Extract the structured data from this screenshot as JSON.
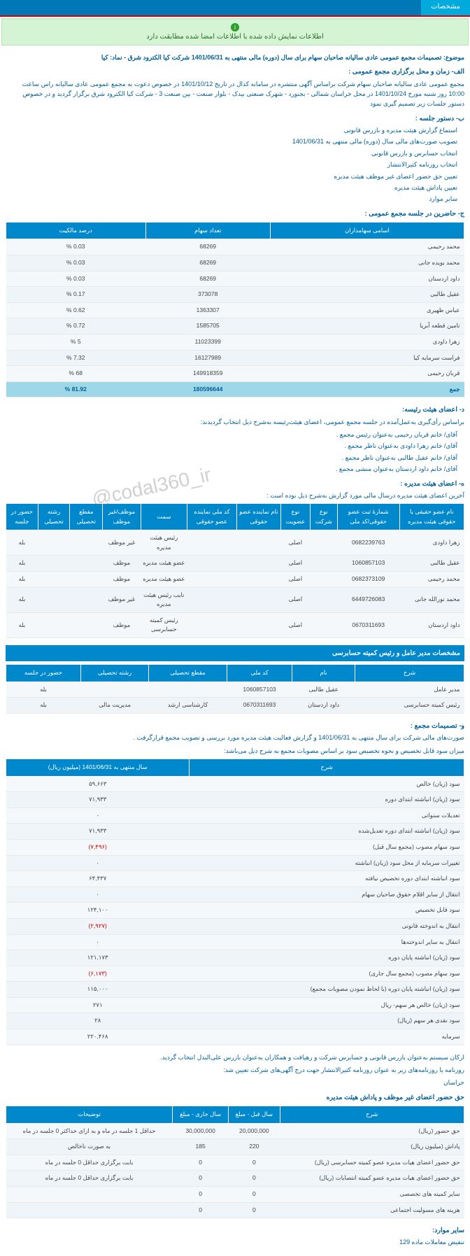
{
  "topbar_tab": "مشخصات",
  "alert_text": "اطلاعات نمایش داده شده با اطلاعات امضا شده مطابقت دارد",
  "subject_label": "موضوع:",
  "subject_text": "تصمیمات مجمع عمومی عادی سالیانه صاحبان سهام برای سال (دوره) مالی منتهی به 1401/06/31 شرکت کیا الکترود شرق - نماد: کیا",
  "intro_para": "مجمع عمومی عادی سالیانه صاحبان سهام شرکت براساس آگهی منتشره در سامانه کدال در تاریخ 1401/10/12 در خصوص دعوت به مجمع عمومی عادی سالیانه راس ساعت 10:00 روز شنبه مورخ 1401/10/24 در محل خراسان شمالی - بجنورد - شهرک صنعتی بیدک - بلوار صنعت - بین صنعت 3 - شرکت کیا الکترود شرق  برگزار گردید و در خصوص دستور جلسات زیر تصمیم گیری نمود",
  "section_a_title": "الف- زمان و محل برگزاری مجمع عمومی :",
  "section_b_title": "ب- دستور جلسه :",
  "agenda": [
    "استماع گزارش هیئت مدیره و بازرس قانونی",
    "تصویب صورت‌های مالی سال (دوره) مالی منتهی به 1401/06/31",
    "انتخاب حسابرس و بازرس قانونی",
    "انتخاب روزنامه کثیرالانتشار",
    "تعیین حق حضور اعضای غیر موظف هیئت مدیره",
    "تعیین پاداش هیئت مدیره",
    "سایر موارد"
  ],
  "section_c_title": "ج- حاضرین در جلسه مجمع عمومی :",
  "shareholders_headers": [
    "اسامی سهامداران",
    "تعداد سهام",
    "درصد مالکیت"
  ],
  "shareholders": [
    {
      "name": "محمد رحیمی",
      "shares": "68269",
      "pct": "0.03 %"
    },
    {
      "name": "محمد بویده جانی",
      "shares": "68269",
      "pct": "0.03 %"
    },
    {
      "name": "داود اردستان",
      "shares": "68269",
      "pct": "0.03 %"
    },
    {
      "name": "عقیل طالبی",
      "shares": "373078",
      "pct": "0.17 %"
    },
    {
      "name": "عباس ظهیری",
      "shares": "1363307",
      "pct": "0.62 %"
    },
    {
      "name": "تامین قطعه آبریا",
      "shares": "1585705",
      "pct": "0.72 %"
    },
    {
      "name": "زهرا داودی",
      "shares": "11023399",
      "pct": "5 %"
    },
    {
      "name": "فراست سرمایه کیا",
      "shares": "16127989",
      "pct": "7.32 %"
    },
    {
      "name": "قربان رحیمی",
      "shares": "149918359",
      "pct": "68 %"
    },
    {
      "name": "جمع",
      "shares": "180596644",
      "pct": "81.92 %",
      "total": true
    }
  ],
  "section_d_title": "د- اعضای هیئت رئیسه:",
  "d_intro": "براساس رأی‌گیری به‌عمل‌آمده در جلسه مجمع عمومی، اعضای هیئت‌رئیسه به‌شرح ذیل انتخاب گردیدند:",
  "d_members": [
    "آقای/ خانم  قربان رحیمی  به‌عنوان رئیس مجمع .",
    "آقای/ خانم  زهرا داودی  به‌عنوان ناظر مجمع .",
    "آقای/ خانم  عقیل طالبی  به‌عنوان ناظر مجمع .",
    "آقای/ خانم  داود اردستان  به‌عنوان منشی مجمع ."
  ],
  "section_e_title": "ه- اعضای هیئت مدیره :",
  "e_intro": "آخرین اعضای هیئت مدیره درسال مالی مورد گزارش به‌شرح ذیل بوده است :",
  "board_headers": [
    "نام عضو حقیقی یا حقوقی هیئت مدیره",
    "شمارهٔ ثبت عضو حقوقی/کد ملی",
    "نوع شرکت",
    "نوع عضویت",
    "نام نماینده عضو حقوقی",
    "کد ملی نماینده عضو حقوقی",
    "سمت",
    "موظف/غیر موظف",
    "مقطع تحصیلی",
    "رشته تحصیلی",
    "حضور در جلسه"
  ],
  "board": [
    {
      "c": [
        "زهرا داودی",
        "0682239763",
        "",
        "اصلی",
        "",
        "",
        "رئیس هیئت مدیره",
        "غیر موظف",
        "",
        "",
        "بله"
      ]
    },
    {
      "c": [
        "عقیل طالبی",
        "1060857103",
        "",
        "اصلی",
        "",
        "",
        "عضو هیئت مدیره",
        "موظف",
        "",
        "",
        "بله"
      ]
    },
    {
      "c": [
        "محمد رحیمی",
        "0682373109",
        "",
        "اصلی",
        "",
        "",
        "عضو هیئت مدیره",
        "موظف",
        "",
        "",
        "بله"
      ]
    },
    {
      "c": [
        "محمد نورالله جانی",
        "6449726083",
        "",
        "اصلی",
        "",
        "",
        "نایب رئیس هیئت مدیره",
        "غیر موظف",
        "",
        "",
        "بله"
      ]
    },
    {
      "c": [
        "داود اردستان",
        "0670311693",
        "",
        "اصلی",
        "",
        "",
        "رئیس کمیته حسابرسی",
        "موظف",
        "",
        "",
        "بله"
      ]
    }
  ],
  "ceo_title": "مشخصات مدیر عامل و رئیس کمیته حسابرسی",
  "ceo_headers": [
    "شرح",
    "نام",
    "کد ملی",
    "مقطع تحصیلی",
    "رشته تحصیلی",
    "حضور در جلسه"
  ],
  "ceo_rows": [
    {
      "c": [
        "مدیر عامل",
        "عقیل طالبی",
        "1060857103",
        "",
        "",
        "بله"
      ]
    },
    {
      "c": [
        "رئیس کمیته حسابرسی",
        "داود اردستان",
        "0670311693",
        "کارشناسی ارشد",
        "مدیریت مالی",
        "بله"
      ]
    }
  ],
  "section_f_title": "و- تصمیمات مجمع :",
  "f_intro": "صورت‌های مالی شرکت برای سال منتهی به  1401/06/31 و گزارش فعالیت هیئت مدیره مورد بررسی و تصویب مجمع قرارگرفت .",
  "profit_intro": "میزان سود قابل تخصیص و نحوه تخصیص سود بر اساس مصوبات مجمع به شرح ذیل می‌باشد:",
  "profit_headers": [
    "شرح",
    "سال منتهی به 1401/06/31 (میلیون ريال)"
  ],
  "profit_rows": [
    {
      "t": "سود (زیان) خالص",
      "v": "۵۹,۶۶۳"
    },
    {
      "t": "سود (زیان) انباشته ابتدای دوره",
      "v": "۷۱,۹۳۳"
    },
    {
      "t": "تعدیلات سنواتی",
      "v": "۰"
    },
    {
      "t": "سود (زیان) انباشته ابتدای دوره تعدیل‌شده",
      "v": "۷۱,۹۳۳"
    },
    {
      "t": "سود سهام مصوب (مجمع سال قبل)",
      "v": "(۷,۴۹۶)",
      "neg": true
    },
    {
      "t": "تغییرات سرمایه از محل سود (زیان) انباشته",
      "v": "۰"
    },
    {
      "t": "سود انباشته ابتدای دوره تخصیص نیافته",
      "v": "۶۴,۴۳۷"
    },
    {
      "t": "انتقال از سایر اقلام حقوق صاحبان سهام",
      "v": "۰"
    },
    {
      "t": "سود قابل تخصیص",
      "v": "۱۲۴,۱۰۰"
    },
    {
      "t": "انتقال به اندوخته قانونی",
      "v": "(۲,۹۲۷)",
      "neg": true
    },
    {
      "t": "انتقال به سایر اندوخته‌ها",
      "v": "۰"
    },
    {
      "t": "سود (زیان) انباشته پايان دوره",
      "v": "۱۲۱,۱۷۳"
    },
    {
      "t": "سود سهام مصوب (مجمع سال جاری)",
      "v": "(۶,۱۷۳)",
      "neg": true
    },
    {
      "t": "سود (زیان) انباشته پایان دوره (با لحاظ نمودن مصوبات مجمع)",
      "v": "۱۱۵,۰۰۰"
    },
    {
      "t": "سود (زیان) خالص هر سهم- ریال",
      "v": "۲۷۱"
    },
    {
      "t": "سود نقدی هر سهم (ریال)",
      "v": "۲۸"
    },
    {
      "t": "سرمایه",
      "v": "۲۲۰,۴۶۸"
    }
  ],
  "auditor_para": "ارکان سیستم   به‌عنوان بازرس قانونی و حسابرس شرکت و   رهیافت و همکاران   به‌عنوان بازرس علی‌البدل انتخاب گردید.",
  "newspaper_para": "روزنامه یا روزنامه‌های زیر به عنوان روزنامه کثیرالانتشار جهت درج آگهی‌های شرکت تعیین شد:",
  "newspaper_name": "خراسان",
  "compensation_title": "حق حضور اعضای غیر موظف و پاداش هیئت مدیره",
  "comp_headers": [
    "شرح",
    "سال قبل - مبلغ",
    "سال جاری - مبلغ",
    "توضیحات"
  ],
  "comp_rows": [
    {
      "c": [
        "حق حضور (ریال)",
        "20,000,000",
        "30,000,000",
        "حداقل  1  جلسه در ماه  و به ازای حداکثر 0   جلسه در ماه"
      ]
    },
    {
      "c": [
        "پاداش (میلیون ريال)",
        "220",
        "185",
        "به صورت ناخالص"
      ]
    },
    {
      "c": [
        "حق حضور اعضای هیات مدیره عضو کمیته حسابرسی (ریال)",
        "0",
        "0",
        "بابت برگزاری حداقل 0   جلسه در ماه"
      ]
    },
    {
      "c": [
        "حق حضور اعضای هیات مدیره عضو کمیته انتصابات (ریال)",
        "0",
        "0",
        "بابت برگزاری حداقل 0   جلسه در ماه"
      ]
    },
    {
      "c": [
        "سایر کمیته های تخصصی",
        "0",
        "0",
        ""
      ]
    },
    {
      "c": [
        "هزینه های مسولیت اجتماعی",
        "0",
        "0",
        ""
      ]
    }
  ],
  "other_title": "سایر موارد:",
  "other_text": "تنفیض معاملات ماده 129",
  "watermark": "@codal360_ir"
}
